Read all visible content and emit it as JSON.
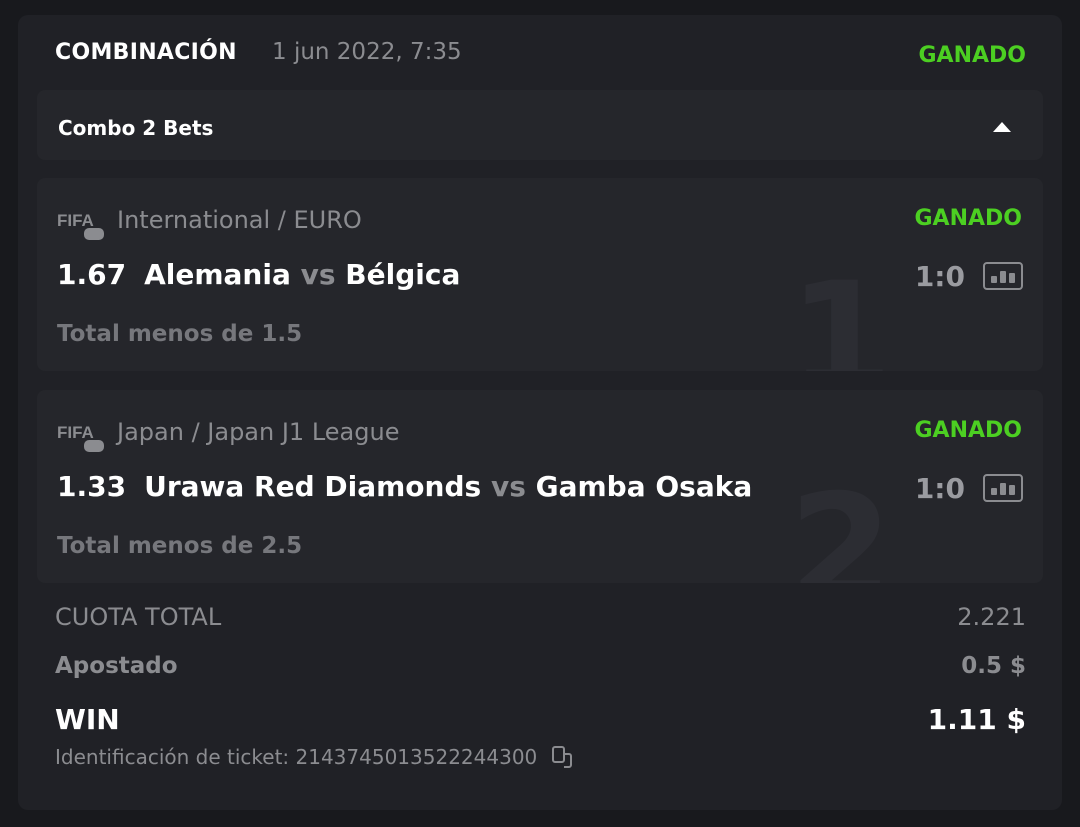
{
  "header": {
    "title": "COMBINACIÓN",
    "date": "1 jun 2022, 7:35",
    "status": "GANADO"
  },
  "combo": {
    "label": "Combo 2 Bets",
    "toggle_icon": "caret-up-icon"
  },
  "bets": [
    {
      "index": "1",
      "sport_icon": "fifa-gamepad-icon",
      "league": "International / EURO",
      "status": "GANADO",
      "odds": "1.67",
      "home": "Alemania",
      "vs": "vs",
      "away": "Bélgica",
      "score": "1:0",
      "market": "Total menos de 1.5"
    },
    {
      "index": "2",
      "sport_icon": "fifa-gamepad-icon",
      "league": "Japan / Japan J1 League",
      "status": "GANADO",
      "odds": "1.33",
      "home": "Urawa Red Diamonds",
      "vs": "vs",
      "away": "Gamba Osaka",
      "score": "1:0",
      "market": "Total menos de 2.5"
    }
  ],
  "summary": {
    "total_odds_label": "CUOTA TOTAL",
    "total_odds": "2.221",
    "staked_label": "Apostado",
    "staked": "0.5 $",
    "win_label": "WIN",
    "win": "1.11 $",
    "ticket_label": "Identificación de ticket: 2143745013522244300"
  },
  "colors": {
    "won": "#4ccf22",
    "background": "#202126",
    "panel": "#25262b"
  }
}
